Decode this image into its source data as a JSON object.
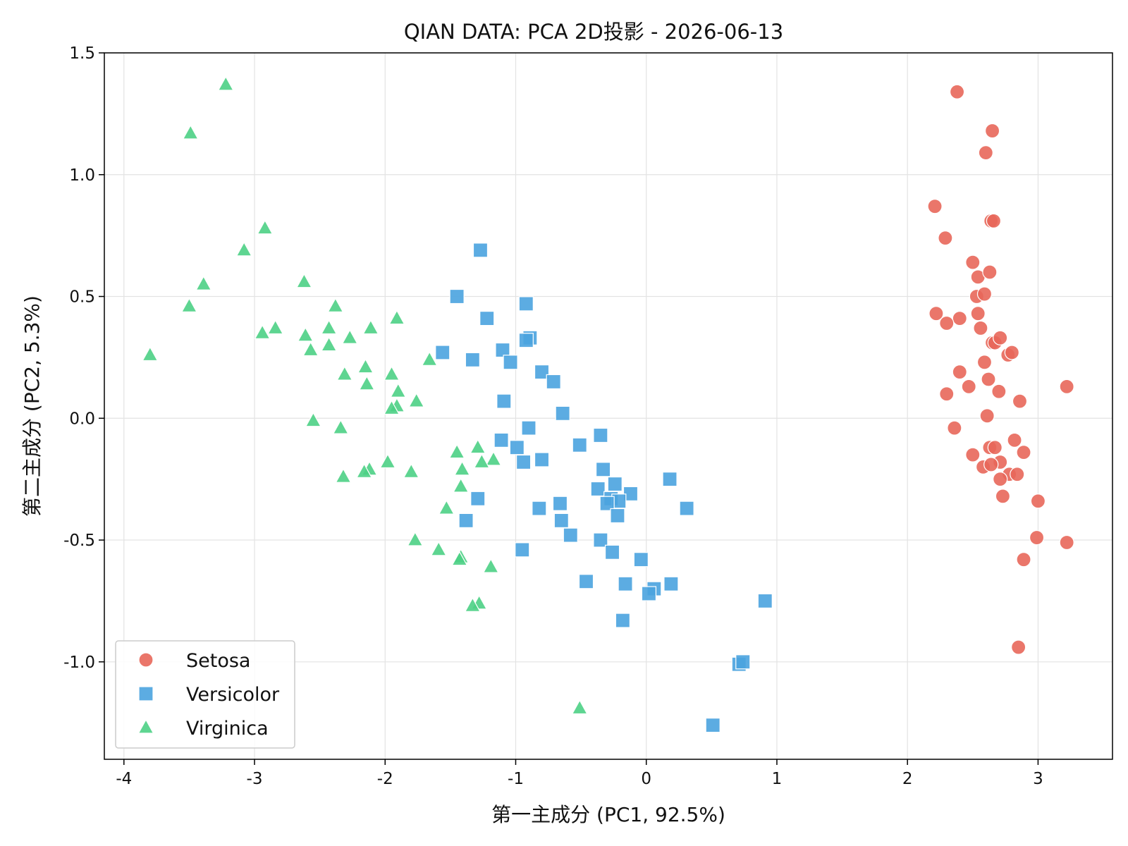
{
  "chart_data": {
    "type": "scatter",
    "title": "QIAN DATA: PCA 2D投影 - 2026-06-13",
    "xlabel": "第一主成分 (PC1, 92.5%)",
    "ylabel": "第二主成分 (PC2, 5.3%)",
    "xlim": [
      -4.15,
      3.57
    ],
    "ylim": [
      -1.4,
      1.5
    ],
    "xticks": [
      -4,
      -3,
      -2,
      -1,
      0,
      1,
      2,
      3
    ],
    "xtick_labels": [
      "-4",
      "-3",
      "-2",
      "-1",
      "0",
      "1",
      "2",
      "3"
    ],
    "yticks": [
      -1.0,
      -0.5,
      0.0,
      0.5,
      1.0,
      1.5
    ],
    "ytick_labels": [
      "-1.0",
      "-0.5",
      "0.0",
      "0.5",
      "1.0",
      "1.5"
    ],
    "grid": true,
    "legend_position": "bottom-left",
    "series": [
      {
        "name": "Setosa",
        "marker": "circle",
        "color": "#e8675a",
        "points": [
          [
            2.38,
            1.34
          ],
          [
            2.65,
            1.18
          ],
          [
            2.6,
            1.09
          ],
          [
            2.21,
            0.87
          ],
          [
            2.64,
            0.81
          ],
          [
            2.66,
            0.81
          ],
          [
            2.29,
            0.74
          ],
          [
            2.5,
            0.64
          ],
          [
            2.54,
            0.58
          ],
          [
            2.63,
            0.6
          ],
          [
            2.53,
            0.5
          ],
          [
            2.59,
            0.51
          ],
          [
            2.22,
            0.43
          ],
          [
            2.4,
            0.41
          ],
          [
            2.54,
            0.43
          ],
          [
            2.3,
            0.39
          ],
          [
            2.56,
            0.37
          ],
          [
            2.65,
            0.31
          ],
          [
            2.67,
            0.31
          ],
          [
            2.71,
            0.33
          ],
          [
            2.77,
            0.26
          ],
          [
            2.8,
            0.27
          ],
          [
            2.59,
            0.23
          ],
          [
            2.4,
            0.19
          ],
          [
            2.62,
            0.16
          ],
          [
            2.47,
            0.13
          ],
          [
            2.3,
            0.1
          ],
          [
            2.7,
            0.11
          ],
          [
            2.86,
            0.07
          ],
          [
            2.61,
            0.01
          ],
          [
            2.36,
            -0.04
          ],
          [
            2.82,
            -0.09
          ],
          [
            2.5,
            -0.15
          ],
          [
            2.63,
            -0.12
          ],
          [
            2.67,
            -0.12
          ],
          [
            2.89,
            -0.14
          ],
          [
            2.71,
            -0.18
          ],
          [
            2.58,
            -0.2
          ],
          [
            2.64,
            -0.19
          ],
          [
            2.78,
            -0.23
          ],
          [
            2.84,
            -0.23
          ],
          [
            2.71,
            -0.25
          ],
          [
            2.73,
            -0.32
          ],
          [
            3.0,
            -0.34
          ],
          [
            2.99,
            -0.49
          ],
          [
            3.22,
            -0.51
          ],
          [
            3.22,
            0.13
          ],
          [
            2.89,
            -0.58
          ],
          [
            2.85,
            -0.94
          ]
        ]
      },
      {
        "name": "Versicolor",
        "marker": "square",
        "color": "#4aa3df",
        "points": [
          [
            -1.27,
            0.69
          ],
          [
            -1.45,
            0.5
          ],
          [
            -0.92,
            0.47
          ],
          [
            -1.22,
            0.41
          ],
          [
            -0.89,
            0.33
          ],
          [
            -0.92,
            0.32
          ],
          [
            -1.56,
            0.27
          ],
          [
            -1.33,
            0.24
          ],
          [
            -1.1,
            0.28
          ],
          [
            -1.04,
            0.23
          ],
          [
            -0.8,
            0.19
          ],
          [
            -0.71,
            0.15
          ],
          [
            -1.09,
            0.07
          ],
          [
            -0.64,
            0.02
          ],
          [
            -0.9,
            -0.04
          ],
          [
            -1.11,
            -0.09
          ],
          [
            -0.99,
            -0.12
          ],
          [
            -0.51,
            -0.11
          ],
          [
            -0.35,
            -0.07
          ],
          [
            -0.8,
            -0.17
          ],
          [
            -0.94,
            -0.18
          ],
          [
            -0.33,
            -0.21
          ],
          [
            -0.24,
            -0.27
          ],
          [
            0.18,
            -0.25
          ],
          [
            -0.37,
            -0.29
          ],
          [
            -0.12,
            -0.31
          ],
          [
            -1.29,
            -0.33
          ],
          [
            -0.27,
            -0.33
          ],
          [
            -0.21,
            -0.34
          ],
          [
            -0.66,
            -0.35
          ],
          [
            -0.3,
            -0.35
          ],
          [
            -0.82,
            -0.37
          ],
          [
            0.31,
            -0.37
          ],
          [
            -0.22,
            -0.4
          ],
          [
            -1.38,
            -0.42
          ],
          [
            -0.65,
            -0.42
          ],
          [
            -0.58,
            -0.48
          ],
          [
            -0.35,
            -0.5
          ],
          [
            -0.26,
            -0.55
          ],
          [
            -0.95,
            -0.54
          ],
          [
            -0.04,
            -0.58
          ],
          [
            -0.46,
            -0.67
          ],
          [
            -0.16,
            -0.68
          ],
          [
            0.19,
            -0.68
          ],
          [
            0.06,
            -0.7
          ],
          [
            0.02,
            -0.72
          ],
          [
            0.91,
            -0.75
          ],
          [
            -0.18,
            -0.83
          ],
          [
            0.71,
            -1.01
          ],
          [
            0.74,
            -1.0
          ],
          [
            0.51,
            -1.26
          ]
        ]
      },
      {
        "name": "Virginica",
        "marker": "triangle",
        "color": "#4dd085",
        "points": [
          [
            -3.22,
            1.37
          ],
          [
            -3.49,
            1.17
          ],
          [
            -2.92,
            0.78
          ],
          [
            -3.08,
            0.69
          ],
          [
            -3.39,
            0.55
          ],
          [
            -2.62,
            0.56
          ],
          [
            -3.5,
            0.46
          ],
          [
            -2.38,
            0.46
          ],
          [
            -1.91,
            0.41
          ],
          [
            -2.94,
            0.35
          ],
          [
            -2.84,
            0.37
          ],
          [
            -2.43,
            0.37
          ],
          [
            -2.11,
            0.37
          ],
          [
            -2.61,
            0.34
          ],
          [
            -2.27,
            0.33
          ],
          [
            -2.43,
            0.3
          ],
          [
            -2.57,
            0.28
          ],
          [
            -3.8,
            0.26
          ],
          [
            -1.66,
            0.24
          ],
          [
            -2.15,
            0.21
          ],
          [
            -2.31,
            0.18
          ],
          [
            -1.95,
            0.18
          ],
          [
            -2.14,
            0.14
          ],
          [
            -1.9,
            0.11
          ],
          [
            -1.76,
            0.07
          ],
          [
            -1.91,
            0.05
          ],
          [
            -1.95,
            0.04
          ],
          [
            -2.55,
            -0.01
          ],
          [
            -2.34,
            -0.04
          ],
          [
            -1.29,
            -0.12
          ],
          [
            -1.45,
            -0.14
          ],
          [
            -1.17,
            -0.17
          ],
          [
            -1.26,
            -0.18
          ],
          [
            -1.98,
            -0.18
          ],
          [
            -1.41,
            -0.21
          ],
          [
            -2.12,
            -0.21
          ],
          [
            -2.16,
            -0.22
          ],
          [
            -1.8,
            -0.22
          ],
          [
            -2.32,
            -0.24
          ],
          [
            -1.42,
            -0.28
          ],
          [
            -1.53,
            -0.37
          ],
          [
            -1.77,
            -0.5
          ],
          [
            -1.59,
            -0.54
          ],
          [
            -1.42,
            -0.57
          ],
          [
            -1.43,
            -0.58
          ],
          [
            -1.19,
            -0.61
          ],
          [
            -1.28,
            -0.76
          ],
          [
            -1.33,
            -0.77
          ],
          [
            -0.51,
            -1.19
          ]
        ]
      }
    ]
  }
}
